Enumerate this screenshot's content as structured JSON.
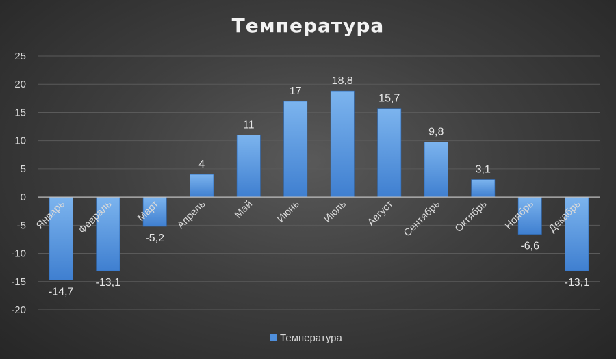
{
  "chart_data": {
    "type": "bar",
    "title": "Температура",
    "categories": [
      "Январь",
      "Февраль",
      "Март",
      "Апрель",
      "Май",
      "Июнь",
      "Июль",
      "Август",
      "Сентябрь",
      "Октябрь",
      "Ноябрь",
      "Декабрь"
    ],
    "series": [
      {
        "name": "Температура",
        "values": [
          -14.7,
          -13.1,
          -5.2,
          4,
          11,
          17,
          18.8,
          15.7,
          9.8,
          3.1,
          -6.6,
          -13.1
        ],
        "value_labels": [
          "-14,7",
          "-13,1",
          "-5,2",
          "4",
          "11",
          "17",
          "18,8",
          "15,7",
          "9,8",
          "3,1",
          "-6,6",
          "-13,1"
        ],
        "color": "#4f8fdc"
      }
    ],
    "y_ticks": [
      "25",
      "20",
      "15",
      "10",
      "5",
      "0",
      "-5",
      "-10",
      "-15",
      "-20"
    ],
    "ylim": [
      -20,
      25
    ],
    "grid": true,
    "legend": "bottom",
    "category_label_rotation": "diagonal"
  },
  "colors": {
    "background_center": "#595959",
    "background_edge": "#262626",
    "bar_top": "#7cb4ee",
    "bar_bottom": "#3f7fd0",
    "gridline": "#5a5a5a",
    "zero_axis": "#bfbfbf",
    "text": "#d9d9d9"
  }
}
